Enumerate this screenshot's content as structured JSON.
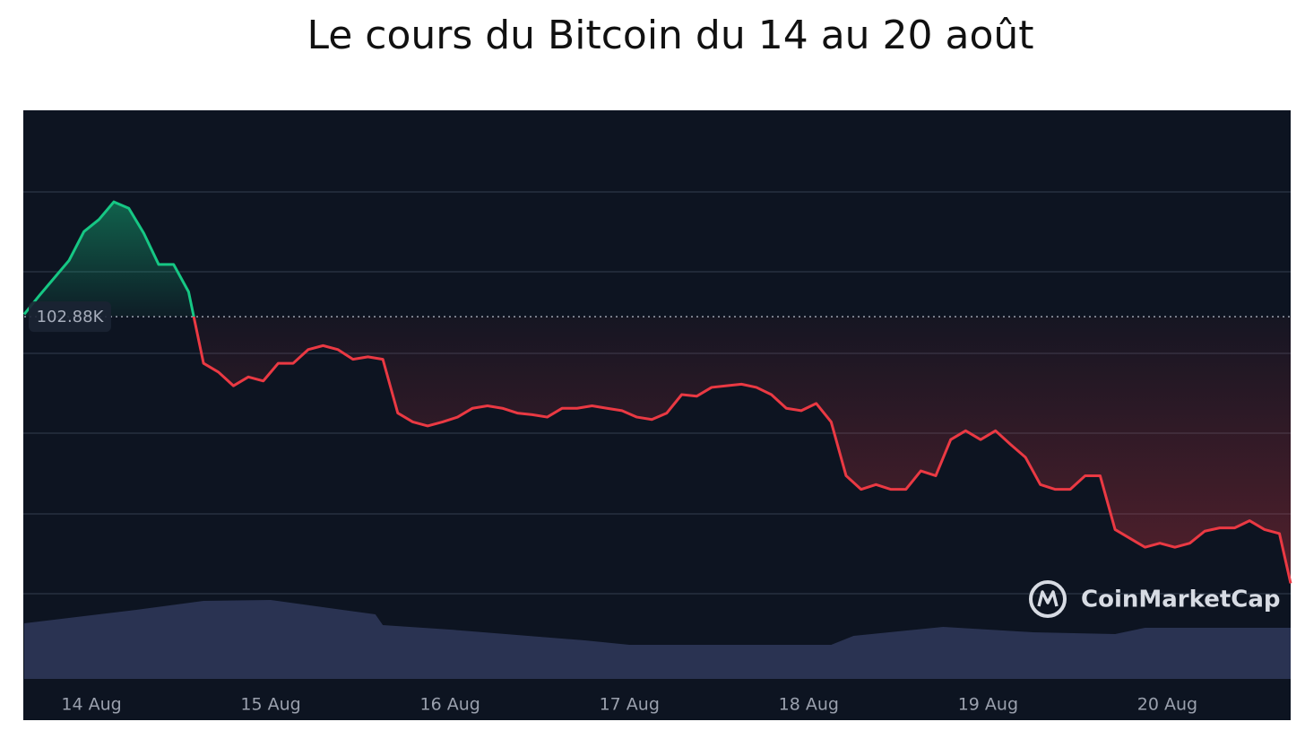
{
  "chart_data": {
    "type": "line",
    "title": "Le cours du Bitcoin du 14 au 20 août",
    "watermark": "CoinMarketCap",
    "baseline": {
      "value": 102.88,
      "label": "102.88K"
    },
    "xlim": [
      -9,
      160.5
    ],
    "xticks": [
      {
        "value": 0,
        "label": "14 Aug"
      },
      {
        "value": 24,
        "label": "15 Aug"
      },
      {
        "value": 48,
        "label": "16 Aug"
      },
      {
        "value": 72,
        "label": "17 Aug"
      },
      {
        "value": 96,
        "label": "18 Aug"
      },
      {
        "value": 120,
        "label": "19 Aug"
      },
      {
        "value": 144,
        "label": "20 Aug"
      }
    ],
    "ylim": [
      98.37,
      105.45
    ],
    "up_color": "#16c784",
    "down_color": "#ea3943",
    "x": [
      -9,
      -7,
      -5,
      -3,
      -1,
      1,
      3,
      5,
      7,
      9,
      11,
      13,
      15,
      17,
      19,
      21,
      23,
      25,
      27,
      29,
      31,
      33,
      35,
      37,
      39,
      41,
      43,
      45,
      47,
      49,
      51,
      53,
      55,
      57,
      59,
      61,
      63,
      65,
      67,
      69,
      71,
      73,
      75,
      77,
      79,
      81,
      83,
      85,
      87,
      89,
      91,
      93,
      95,
      97,
      99,
      101,
      103,
      105,
      107,
      109,
      111,
      113,
      115,
      117,
      119,
      121,
      123,
      125,
      127,
      129,
      131,
      133,
      135,
      137,
      139,
      141,
      143,
      145,
      147,
      149,
      151,
      153,
      155,
      157,
      159,
      160.5
    ],
    "values": [
      102.91,
      103.14,
      103.36,
      103.58,
      103.94,
      104.09,
      104.31,
      104.23,
      103.92,
      103.53,
      103.53,
      103.19,
      102.3,
      102.19,
      102.02,
      102.13,
      102.08,
      102.3,
      102.3,
      102.47,
      102.52,
      102.47,
      102.35,
      102.38,
      102.35,
      101.68,
      101.57,
      101.52,
      101.57,
      101.63,
      101.74,
      101.77,
      101.74,
      101.68,
      101.66,
      101.63,
      101.74,
      101.74,
      101.77,
      101.74,
      101.71,
      101.63,
      101.6,
      101.68,
      101.91,
      101.89,
      102.0,
      102.02,
      102.04,
      102.0,
      101.91,
      101.74,
      101.71,
      101.8,
      101.57,
      100.9,
      100.73,
      100.79,
      100.73,
      100.73,
      100.96,
      100.9,
      101.35,
      101.46,
      101.35,
      101.46,
      101.29,
      101.13,
      100.79,
      100.73,
      100.73,
      100.9,
      100.9,
      100.23,
      100.12,
      100.01,
      100.06,
      100.01,
      100.06,
      100.21,
      100.25,
      100.25,
      100.34,
      100.23,
      100.18,
      99.56
    ],
    "volume": {
      "color": "#2a3352",
      "axis": "y2",
      "x": [
        -9,
        6,
        15,
        24,
        38,
        39,
        48,
        66,
        72,
        99,
        102,
        114,
        126,
        137,
        141,
        160.5
      ],
      "values": [
        62,
        77,
        87,
        88,
        72,
        60,
        55,
        43,
        38,
        38,
        48,
        58,
        52,
        50,
        57,
        57
      ]
    },
    "y2lim": [
      0,
      634
    ]
  }
}
